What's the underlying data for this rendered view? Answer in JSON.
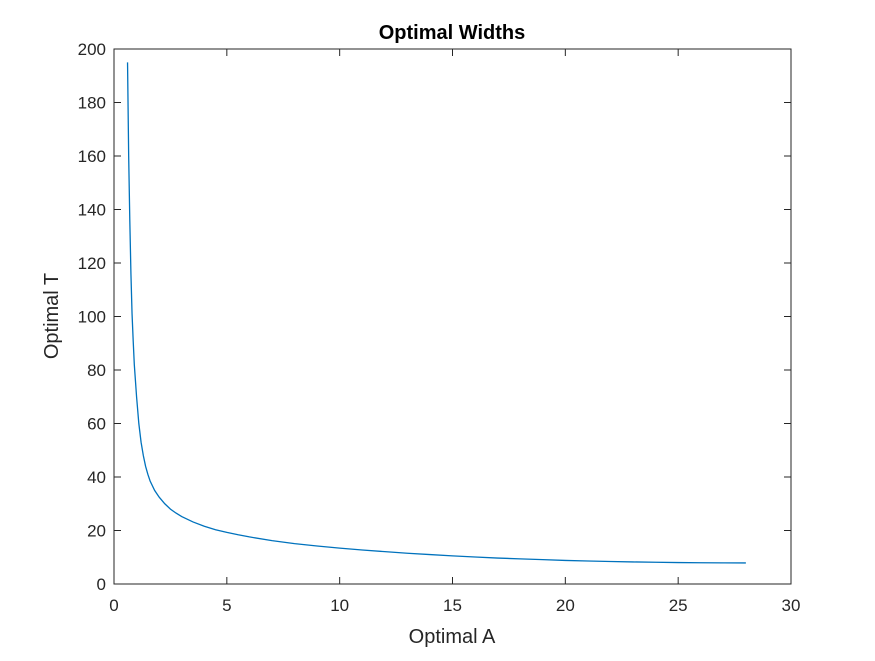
{
  "chart_data": {
    "type": "line",
    "title": "Optimal Widths",
    "xlabel": "Optimal A",
    "ylabel": "Optimal T",
    "xlim": [
      0,
      30
    ],
    "ylim": [
      0,
      200
    ],
    "xticks": [
      0,
      5,
      10,
      15,
      20,
      25,
      30
    ],
    "yticks": [
      0,
      20,
      40,
      60,
      80,
      100,
      120,
      140,
      160,
      180,
      200
    ],
    "grid": false,
    "box": true,
    "line_color": "#0072BD",
    "series": [
      {
        "x": [
          0.6,
          0.65,
          0.7,
          0.75,
          0.8,
          0.85,
          0.9,
          0.95,
          1.0,
          1.1,
          1.2,
          1.3,
          1.4,
          1.5,
          1.6,
          1.8,
          2.0,
          2.25,
          2.5,
          2.75,
          3.0,
          3.5,
          4.0,
          4.5,
          5.0,
          5.5,
          6.0,
          7.0,
          8.0,
          9.0,
          10.0,
          11.0,
          12.0,
          13.0,
          14.0,
          15.0,
          16.0,
          17.0,
          18.0,
          19.0,
          20.0,
          21.0,
          22.0,
          23.0,
          24.0,
          25.0,
          26.0,
          27.0,
          28.0
        ],
        "y": [
          195,
          160,
          136,
          116,
          101,
          91,
          82,
          76,
          70,
          60,
          53,
          48,
          44,
          41,
          38.5,
          35,
          32.5,
          30,
          28,
          26.5,
          25.2,
          23.2,
          21.6,
          20.3,
          19.3,
          18.4,
          17.6,
          16.2,
          15.1,
          14.2,
          13.4,
          12.7,
          12.1,
          11.5,
          11.0,
          10.5,
          10.1,
          9.7,
          9.4,
          9.1,
          8.8,
          8.6,
          8.4,
          8.25,
          8.12,
          8.02,
          7.95,
          7.9,
          7.88
        ]
      }
    ]
  }
}
